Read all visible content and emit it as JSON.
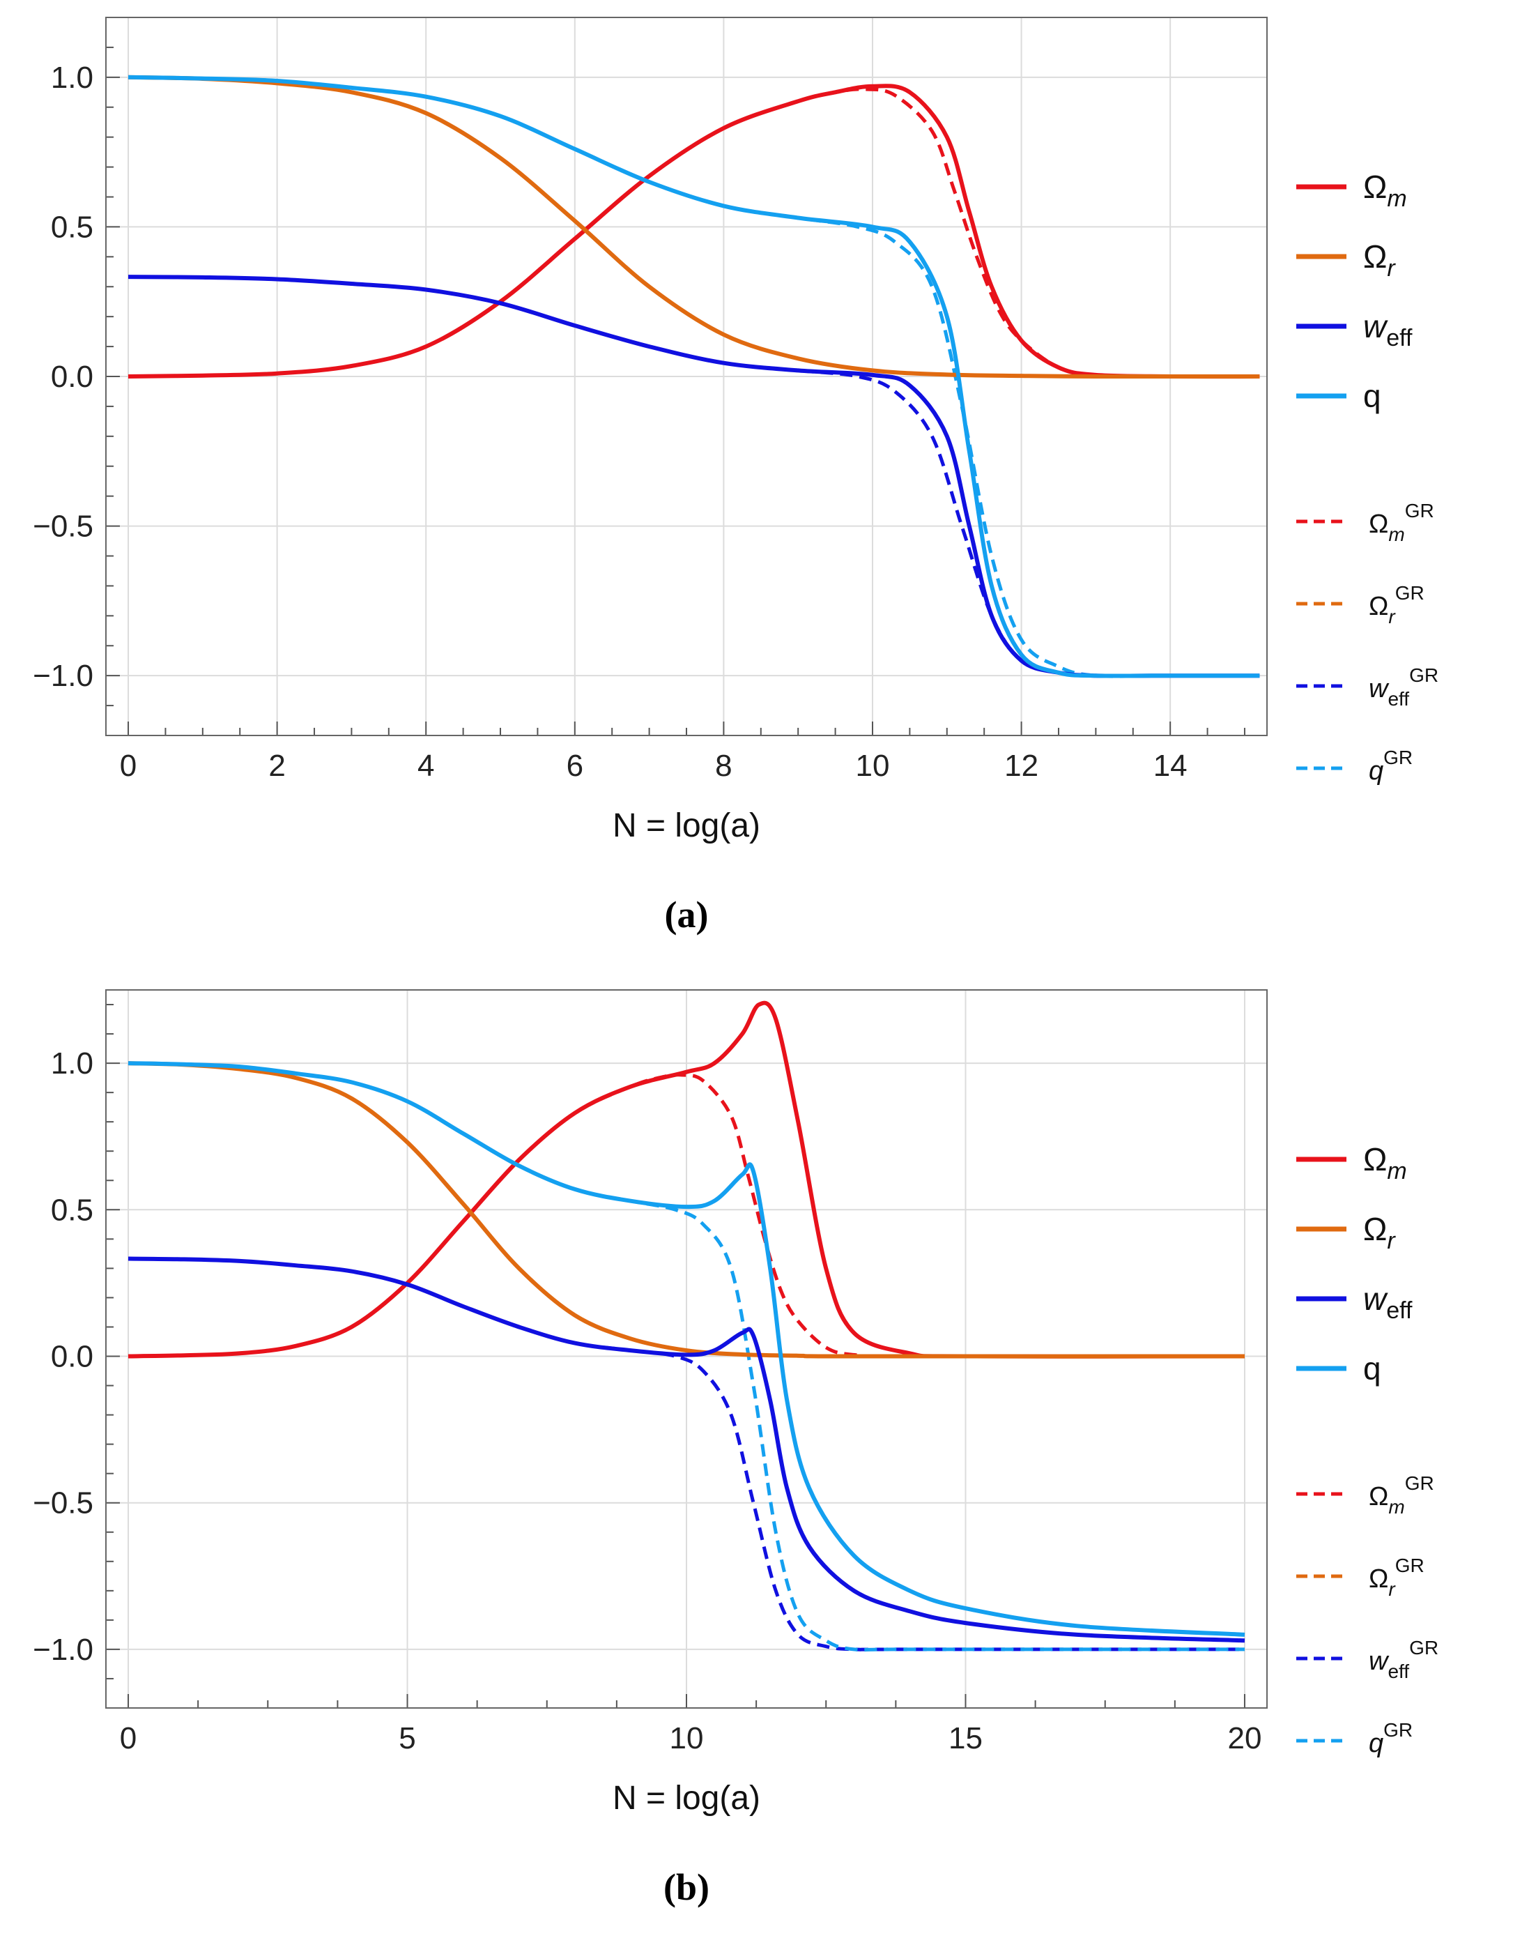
{
  "chart_data": [
    {
      "type": "line",
      "panel": "a",
      "caption": "(a)",
      "xlabel": "N = log(a)",
      "ylabel": "",
      "xlim": [
        -0.3,
        15.3
      ],
      "ylim": [
        -1.2,
        1.2
      ],
      "xticks": [
        0,
        2,
        4,
        6,
        8,
        10,
        12,
        14
      ],
      "yticks": [
        -1.0,
        -0.5,
        0.0,
        0.5,
        1.0
      ],
      "xtick_labels": [
        "0",
        "2",
        "4",
        "6",
        "8",
        "10",
        "12",
        "14"
      ],
      "ytick_labels": [
        "−1.0",
        "−0.5",
        "0.0",
        "0.5",
        "1.0"
      ],
      "grid": true,
      "legend_position": "right",
      "legend": [
        {
          "main": "Ω",
          "sub": "m",
          "sup": "",
          "color": "#e8121b",
          "style": "solid"
        },
        {
          "main": "Ω",
          "sub": "r",
          "sup": "",
          "color": "#e06a10",
          "style": "solid"
        },
        {
          "main": "w",
          "sub": "eff",
          "sup": "",
          "color": "#1010e0",
          "style": "solid"
        },
        {
          "main": "q",
          "sub": "",
          "sup": "",
          "color": "#14a0f0",
          "style": "solid"
        },
        {
          "main": "Ω",
          "sub": "m",
          "sup": "GR",
          "color": "#e8121b",
          "style": "dashed"
        },
        {
          "main": "Ω",
          "sub": "r",
          "sup": "GR",
          "color": "#e06a10",
          "style": "dashed"
        },
        {
          "main": "w",
          "sub": "eff",
          "sup": "GR",
          "color": "#1010e0",
          "style": "dashed"
        },
        {
          "main": "q",
          "sub": "",
          "sup": "GR",
          "color": "#14a0f0",
          "style": "dashed"
        }
      ],
      "series": [
        {
          "name": "Ωm",
          "color": "#e8121b",
          "style": "solid",
          "x": [
            0,
            1,
            2,
            3,
            4,
            5,
            6,
            7,
            8,
            9,
            9.5,
            10,
            10.5,
            11,
            11.3,
            11.6,
            12,
            12.5,
            13,
            14,
            15.2
          ],
          "y": [
            0,
            0.003,
            0.01,
            0.035,
            0.1,
            0.25,
            0.46,
            0.67,
            0.83,
            0.92,
            0.95,
            0.97,
            0.95,
            0.8,
            0.55,
            0.3,
            0.12,
            0.03,
            0.005,
            0,
            0
          ]
        },
        {
          "name": "Ωr",
          "color": "#e06a10",
          "style": "solid",
          "x": [
            0,
            1,
            2,
            3,
            4,
            5,
            6,
            7,
            8,
            9,
            10,
            11,
            12,
            13,
            15.2
          ],
          "y": [
            1.0,
            0.995,
            0.98,
            0.95,
            0.88,
            0.73,
            0.52,
            0.3,
            0.14,
            0.06,
            0.02,
            0.006,
            0.002,
            0,
            0
          ]
        },
        {
          "name": "weff",
          "color": "#1010e0",
          "style": "solid",
          "x": [
            0,
            1,
            2,
            3,
            4,
            5,
            6,
            7,
            8,
            9,
            10,
            10.5,
            11,
            11.3,
            11.6,
            12,
            12.5,
            13,
            14,
            15.2
          ],
          "y": [
            0.333,
            0.331,
            0.325,
            0.31,
            0.29,
            0.245,
            0.17,
            0.1,
            0.045,
            0.02,
            0.005,
            -0.03,
            -0.2,
            -0.5,
            -0.8,
            -0.95,
            -0.99,
            -1.0,
            -1.0,
            -1.0
          ]
        },
        {
          "name": "q",
          "color": "#14a0f0",
          "style": "solid",
          "x": [
            0,
            1,
            2,
            3,
            4,
            5,
            6,
            7,
            8,
            9,
            10,
            10.5,
            11,
            11.3,
            11.6,
            12,
            12.5,
            13,
            14,
            15.2
          ],
          "y": [
            1.0,
            0.996,
            0.988,
            0.965,
            0.935,
            0.87,
            0.76,
            0.65,
            0.57,
            0.53,
            0.5,
            0.45,
            0.2,
            -0.25,
            -0.7,
            -0.93,
            -0.99,
            -1.0,
            -1.0,
            -1.0
          ]
        },
        {
          "name": "ΩmGR",
          "color": "#e8121b",
          "style": "dashed",
          "x": [
            0,
            1,
            2,
            3,
            4,
            5,
            6,
            7,
            8,
            9,
            9.5,
            9.9,
            10.3,
            10.8,
            11.1,
            11.4,
            11.7,
            12,
            12.5,
            13,
            14,
            15.2
          ],
          "y": [
            0,
            0.003,
            0.01,
            0.035,
            0.1,
            0.25,
            0.46,
            0.67,
            0.83,
            0.92,
            0.95,
            0.96,
            0.94,
            0.82,
            0.62,
            0.4,
            0.22,
            0.12,
            0.03,
            0.005,
            0,
            0
          ]
        },
        {
          "name": "ΩrGR",
          "color": "#e06a10",
          "style": "dashed",
          "x": [
            0,
            1,
            2,
            3,
            4,
            5,
            6,
            7,
            8,
            9,
            10,
            11,
            12,
            13,
            15.2
          ],
          "y": [
            1.0,
            0.995,
            0.98,
            0.95,
            0.88,
            0.73,
            0.52,
            0.3,
            0.14,
            0.06,
            0.02,
            0.006,
            0.002,
            0,
            0
          ]
        },
        {
          "name": "weffGR",
          "color": "#1010e0",
          "style": "dashed",
          "x": [
            0,
            1,
            2,
            3,
            4,
            5,
            6,
            7,
            8,
            9,
            9.8,
            10.3,
            10.8,
            11.2,
            11.6,
            12,
            12.5,
            13,
            14,
            15.2
          ],
          "y": [
            0.333,
            0.331,
            0.325,
            0.31,
            0.29,
            0.245,
            0.17,
            0.1,
            0.045,
            0.02,
            0,
            -0.05,
            -0.2,
            -0.5,
            -0.8,
            -0.95,
            -0.99,
            -1.0,
            -1.0,
            -1.0
          ]
        },
        {
          "name": "qGR",
          "color": "#14a0f0",
          "style": "dashed",
          "x": [
            0,
            1,
            2,
            3,
            4,
            5,
            6,
            7,
            8,
            9,
            9.8,
            10.3,
            10.8,
            11.2,
            11.6,
            12,
            12.5,
            13,
            14,
            15.2
          ],
          "y": [
            1.0,
            0.996,
            0.988,
            0.965,
            0.935,
            0.87,
            0.76,
            0.65,
            0.57,
            0.53,
            0.5,
            0.45,
            0.3,
            -0.1,
            -0.6,
            -0.88,
            -0.97,
            -1.0,
            -1.0,
            -1.0
          ]
        }
      ]
    },
    {
      "type": "line",
      "panel": "b",
      "caption": "(b)",
      "xlabel": "N = log(a)",
      "ylabel": "",
      "xlim": [
        -0.4,
        20.4
      ],
      "ylim": [
        -1.2,
        1.25
      ],
      "xticks": [
        0,
        5,
        10,
        15,
        20
      ],
      "yticks": [
        -1.0,
        -0.5,
        0.0,
        0.5,
        1.0
      ],
      "xtick_labels": [
        "0",
        "5",
        "10",
        "15",
        "20"
      ],
      "ytick_labels": [
        "−1.0",
        "−0.5",
        "0.0",
        "0.5",
        "1.0"
      ],
      "grid": true,
      "legend_position": "right",
      "legend": [
        {
          "main": "Ω",
          "sub": "m",
          "sup": "",
          "color": "#e8121b",
          "style": "solid"
        },
        {
          "main": "Ω",
          "sub": "r",
          "sup": "",
          "color": "#e06a10",
          "style": "solid"
        },
        {
          "main": "w",
          "sub": "eff",
          "sup": "",
          "color": "#1010e0",
          "style": "solid"
        },
        {
          "main": "q",
          "sub": "",
          "sup": "",
          "color": "#14a0f0",
          "style": "solid"
        },
        {
          "main": "Ω",
          "sub": "m",
          "sup": "GR",
          "color": "#e8121b",
          "style": "dashed"
        },
        {
          "main": "Ω",
          "sub": "r",
          "sup": "GR",
          "color": "#e06a10",
          "style": "dashed"
        },
        {
          "main": "w",
          "sub": "eff",
          "sup": "GR",
          "color": "#1010e0",
          "style": "dashed"
        },
        {
          "main": "q",
          "sub": "",
          "sup": "GR",
          "color": "#14a0f0",
          "style": "dashed"
        }
      ],
      "series": [
        {
          "name": "Ωm",
          "color": "#e8121b",
          "style": "solid",
          "x": [
            0,
            1,
            2,
            3,
            4,
            5,
            6,
            7,
            8,
            9,
            10,
            10.5,
            11,
            11.3,
            11.6,
            12,
            12.5,
            13,
            14,
            15,
            20
          ],
          "y": [
            0,
            0.003,
            0.01,
            0.035,
            0.1,
            0.25,
            0.46,
            0.67,
            0.83,
            0.92,
            0.97,
            1.0,
            1.1,
            1.2,
            1.15,
            0.8,
            0.3,
            0.08,
            0.01,
            0,
            0
          ]
        },
        {
          "name": "Ωr",
          "color": "#e06a10",
          "style": "solid",
          "x": [
            0,
            1,
            2,
            3,
            4,
            5,
            6,
            7,
            8,
            9,
            10,
            11,
            12,
            13,
            20
          ],
          "y": [
            1.0,
            0.995,
            0.98,
            0.95,
            0.88,
            0.73,
            0.52,
            0.3,
            0.14,
            0.06,
            0.02,
            0.006,
            0.002,
            0,
            0
          ]
        },
        {
          "name": "weff",
          "color": "#1010e0",
          "style": "solid",
          "x": [
            0,
            1,
            2,
            3,
            4,
            5,
            6,
            7,
            8,
            9,
            10,
            10.5,
            11,
            11.2,
            11.5,
            11.8,
            12.2,
            13,
            14,
            15,
            17,
            20
          ],
          "y": [
            0.333,
            0.331,
            0.325,
            0.31,
            0.29,
            0.245,
            0.17,
            0.1,
            0.045,
            0.02,
            0.005,
            0.02,
            0.08,
            0.07,
            -0.15,
            -0.45,
            -0.65,
            -0.8,
            -0.87,
            -0.91,
            -0.95,
            -0.97
          ]
        },
        {
          "name": "q",
          "color": "#14a0f0",
          "style": "solid",
          "x": [
            0,
            1,
            2,
            3,
            4,
            5,
            6,
            7,
            8,
            9,
            10,
            10.5,
            11,
            11.2,
            11.5,
            11.8,
            12.2,
            13,
            14,
            15,
            17,
            20
          ],
          "y": [
            1.0,
            0.996,
            0.988,
            0.965,
            0.935,
            0.87,
            0.76,
            0.65,
            0.57,
            0.53,
            0.51,
            0.53,
            0.62,
            0.63,
            0.3,
            -0.15,
            -0.45,
            -0.68,
            -0.8,
            -0.86,
            -0.92,
            -0.95
          ]
        },
        {
          "name": "ΩmGR",
          "color": "#e8121b",
          "style": "dashed",
          "x": [
            0,
            1,
            2,
            3,
            4,
            5,
            6,
            7,
            8,
            9,
            9.5,
            9.9,
            10.3,
            10.8,
            11.1,
            11.4,
            11.7,
            12,
            12.5,
            13,
            14,
            20
          ],
          "y": [
            0,
            0.003,
            0.01,
            0.035,
            0.1,
            0.25,
            0.46,
            0.67,
            0.83,
            0.92,
            0.95,
            0.96,
            0.94,
            0.82,
            0.62,
            0.4,
            0.22,
            0.12,
            0.03,
            0.005,
            0,
            0
          ]
        },
        {
          "name": "ΩrGR",
          "color": "#e06a10",
          "style": "dashed",
          "x": [
            0,
            1,
            2,
            3,
            4,
            5,
            6,
            7,
            8,
            9,
            10,
            11,
            12,
            13,
            20
          ],
          "y": [
            1.0,
            0.995,
            0.98,
            0.95,
            0.88,
            0.73,
            0.52,
            0.3,
            0.14,
            0.06,
            0.02,
            0.006,
            0.002,
            0,
            0
          ]
        },
        {
          "name": "weffGR",
          "color": "#1010e0",
          "style": "dashed",
          "x": [
            0,
            1,
            2,
            3,
            4,
            5,
            6,
            7,
            8,
            9,
            9.8,
            10.3,
            10.8,
            11.2,
            11.6,
            12,
            12.5,
            13,
            14,
            20
          ],
          "y": [
            0.333,
            0.331,
            0.325,
            0.31,
            0.29,
            0.245,
            0.17,
            0.1,
            0.045,
            0.02,
            0,
            -0.05,
            -0.2,
            -0.5,
            -0.8,
            -0.95,
            -0.99,
            -1.0,
            -1.0,
            -1.0
          ]
        },
        {
          "name": "qGR",
          "color": "#14a0f0",
          "style": "dashed",
          "x": [
            0,
            1,
            2,
            3,
            4,
            5,
            6,
            7,
            8,
            9,
            9.8,
            10.3,
            10.8,
            11.2,
            11.6,
            12,
            12.5,
            13,
            14,
            20
          ],
          "y": [
            1.0,
            0.996,
            0.988,
            0.965,
            0.935,
            0.87,
            0.76,
            0.65,
            0.57,
            0.53,
            0.5,
            0.45,
            0.3,
            -0.1,
            -0.6,
            -0.88,
            -0.97,
            -1.0,
            -1.0,
            -1.0
          ]
        }
      ]
    }
  ]
}
